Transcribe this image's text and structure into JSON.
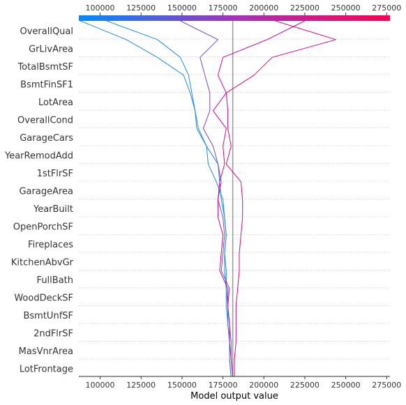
{
  "chart_data": {
    "type": "line",
    "subtype": "shap-decision-plot",
    "xlabel": "Model output value",
    "xlim": [
      87000,
      277000
    ],
    "xticks": [
      100000,
      125000,
      150000,
      175000,
      200000,
      225000,
      250000,
      275000
    ],
    "xtick_labels": [
      "100000",
      "125000",
      "150000",
      "175000",
      "200000",
      "225000",
      "250000",
      "275000"
    ],
    "base_value": 181000,
    "features": [
      "OverallQual",
      "GrLivArea",
      "TotalBsmtSF",
      "BsmtFinSF1",
      "LotArea",
      "OverallCond",
      "GarageCars",
      "YearRemodAdd",
      "1stFlrSF",
      "GarageArea",
      "YearBuilt",
      "OpenPorchSF",
      "Fireplaces",
      "KitchenAbvGr",
      "FullBath",
      "WoodDeckSF",
      "BsmtUnfSF",
      "2ndFlrSF",
      "MasVnrArea",
      "LotFrontage"
    ],
    "colorbar": {
      "min": 87000,
      "max": 277000,
      "low_color": "#008bfb",
      "mid_color": "#a233ba",
      "high_color": "#ff0052"
    },
    "grid": true,
    "series": [
      {
        "color": "#1e88e5",
        "values": [
          88000,
          116000,
          135000,
          151000,
          155000,
          158000,
          160000,
          165000,
          166000,
          171000,
          175000,
          176000,
          177000,
          176000,
          177000,
          177000,
          178000,
          178000,
          179000,
          179000,
          180000
        ]
      },
      {
        "color": "#1e88e5",
        "values": [
          104000,
          135000,
          149000,
          154000,
          156000,
          158000,
          159000,
          165000,
          172000,
          173000,
          174000,
          176000,
          177000,
          176000,
          176000,
          177000,
          177000,
          178000,
          179000,
          179000,
          180000
        ]
      },
      {
        "color": "#7b47c6",
        "values": [
          149000,
          172000,
          161000,
          164000,
          167000,
          167000,
          163000,
          169000,
          172000,
          174000,
          172000,
          175000,
          176000,
          175000,
          174000,
          179000,
          178000,
          179000,
          180000,
          180000,
          181000
        ]
      },
      {
        "color": "#c90898",
        "values": [
          225000,
          202000,
          175000,
          172000,
          177000,
          169000,
          177000,
          175000,
          176000,
          173000,
          172000,
          172000,
          175000,
          174000,
          173000,
          178000,
          178000,
          179000,
          179000,
          180000,
          181000
        ]
      },
      {
        "color": "#e4007f",
        "values": [
          207000,
          244000,
          205000,
          194000,
          177000,
          178000,
          178000,
          180000,
          177000,
          186000,
          187000,
          187000,
          186000,
          185000,
          185000,
          184000,
          183000,
          183000,
          183000,
          182000,
          182000
        ]
      }
    ]
  }
}
